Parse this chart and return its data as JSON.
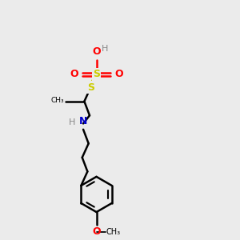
{
  "bg_color": "#ebebeb",
  "bond_color": "#000000",
  "N_color": "#0000cc",
  "H_color": "#888888",
  "S_color": "#cccc00",
  "O_color": "#ff0000",
  "line_width": 1.8,
  "fig_width": 3.0,
  "fig_height": 3.0,
  "xlim": [
    0,
    10
  ],
  "ylim": [
    0,
    10
  ]
}
